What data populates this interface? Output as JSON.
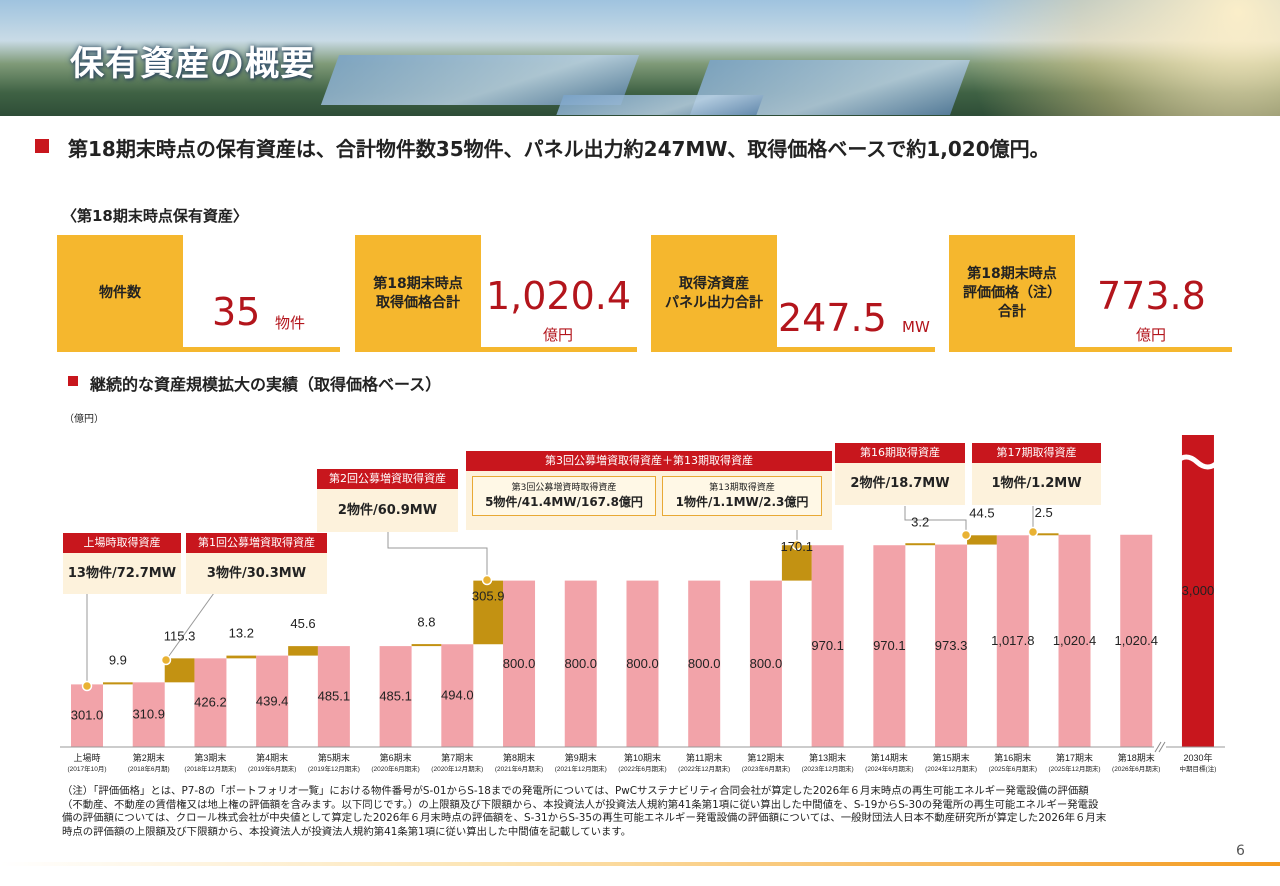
{
  "header": {
    "title": "保有資産の概要"
  },
  "summary": "第18期末時点の保有資産は、合計物件数35物件、パネル出力約247MW、取得価格ベースで約1,020億円。",
  "kpi_heading": "〈第18期末時点保有資産〉",
  "kpis": [
    {
      "label": "物件数",
      "value": "35",
      "unit": "物件"
    },
    {
      "label": "第18期末時点\n取得価格合計",
      "value": "1,020.4",
      "unit": "億円"
    },
    {
      "label": "取得済資産\nパネル出力合計",
      "value": "247.5",
      "unit": "MW"
    },
    {
      "label": "第18期末時点\n評価価格（注）\n合計",
      "value": "773.8",
      "unit": "億円"
    }
  ],
  "section_heading": "継続的な資産規模拡大の実績（取得価格ベース）",
  "chart_data": {
    "type": "waterfall",
    "unit_label": "（億円）",
    "categories": [
      "上場時",
      "第2期末",
      "第3期末",
      "第4期末",
      "第5期末",
      "第6期末",
      "第7期末",
      "第8期末",
      "第9期末",
      "第10期末",
      "第11期末",
      "第12期末",
      "第13期末",
      "第14期末",
      "第15期末",
      "第16期末",
      "第17期末",
      "第18期末",
      "2030年"
    ],
    "sublabels": [
      "(2017年10月)",
      "(2018年6月期)",
      "(2018年12月期末)",
      "(2019年6月期末)",
      "(2019年12月期末)",
      "(2020年6月期末)",
      "(2020年12月期末)",
      "(2021年6月期末)",
      "(2021年12月期末)",
      "(2022年6月期末)",
      "(2022年12月期末)",
      "(2023年6月期末)",
      "(2023年12月期末)",
      "(2024年6月期末)",
      "(2024年12月期末)",
      "(2025年6月期末)",
      "(2025年12月期末)",
      "(2026年6月期末)",
      "中期目標(注)"
    ],
    "values": [
      301.0,
      310.9,
      426.2,
      439.4,
      485.1,
      485.1,
      494.0,
      800.0,
      800.0,
      800.0,
      800.0,
      800.0,
      970.1,
      970.1,
      973.3,
      1017.8,
      1020.4,
      1020.4,
      3000
    ],
    "value_labels": [
      "301.0",
      "310.9",
      "426.2",
      "439.4",
      "485.1",
      "485.1",
      "494.0",
      "800.0",
      "800.0",
      "800.0",
      "800.0",
      "800.0",
      "970.1",
      "970.1",
      "973.3",
      "1,017.8",
      "1,020.4",
      "1,020.4",
      "3,000"
    ],
    "colors": [
      "#f2a3a9",
      "#f2a3a9",
      "#f2a3a9",
      "#f2a3a9",
      "#f2a3a9",
      "#f2a3a9",
      "#f2a3a9",
      "#f2a3a9",
      "#f2a3a9",
      "#f2a3a9",
      "#f2a3a9",
      "#f2a3a9",
      "#f2a3a9",
      "#f2a3a9",
      "#f2a3a9",
      "#f2a3a9",
      "#f2a3a9",
      "#f2a3a9",
      "#c8161d"
    ],
    "increments": {
      "color": "#c39212",
      "values": [
        null,
        9.9,
        115.3,
        13.2,
        45.6,
        null,
        8.8,
        305.9,
        null,
        null,
        null,
        null,
        170.1,
        null,
        3.2,
        44.5,
        2.5,
        null,
        null
      ]
    },
    "ylim": [
      0,
      1500
    ]
  },
  "callouts": [
    {
      "title": "上場時取得資産",
      "text": "13物件/72.7MW"
    },
    {
      "title": "第1回公募増資取得資産",
      "text": "3物件/30.3MW"
    },
    {
      "title": "第2回公募増資取得資産",
      "text": "2物件/60.9MW"
    },
    {
      "title": "第3回公募増資取得資産＋第13期取得資産",
      "items": [
        {
          "title": "第3回公募増資時取得資産",
          "text": "5物件/41.4MW/167.8億円"
        },
        {
          "title": "第13期取得資産",
          "text": "1物件/1.1MW/2.3億円"
        }
      ]
    },
    {
      "title": "第16期取得資産",
      "text": "2物件/18.7MW"
    },
    {
      "title": "第17期取得資産",
      "text": "1物件/1.2MW"
    }
  ],
  "footnote": [
    "（注）「評価価格」とは、P7-8の「ポートフォリオ一覧」における物件番号がS-01からS-18までの発電所については、PwCサステナビリティ合同会社が算定した2026年６月末時点の再生可能エネルギー発電設備の評価額",
    "（不動産、不動産の賃借権又は地上権の評価額を含みます。以下同じです。）の上限額及び下限額から、本投資法人が投資法人規約第41条第1項に従い算出した中間値を、S-19からS-30の発電所の再生可能エネルギー発電設",
    "備の評価額については、クロール株式会社が中央値として算定した2026年６月末時点の評価額を、S-31からS-35の再生可能エネルギー発電設備の評価額については、一般財団法人日本不動産研究所が算定した2026年６月末",
    "時点の評価額の上限額及び下限額から、本投資法人が投資法人規約第41条第1項に従い算出した中間値を記載しています。"
  ],
  "page_number": "6"
}
